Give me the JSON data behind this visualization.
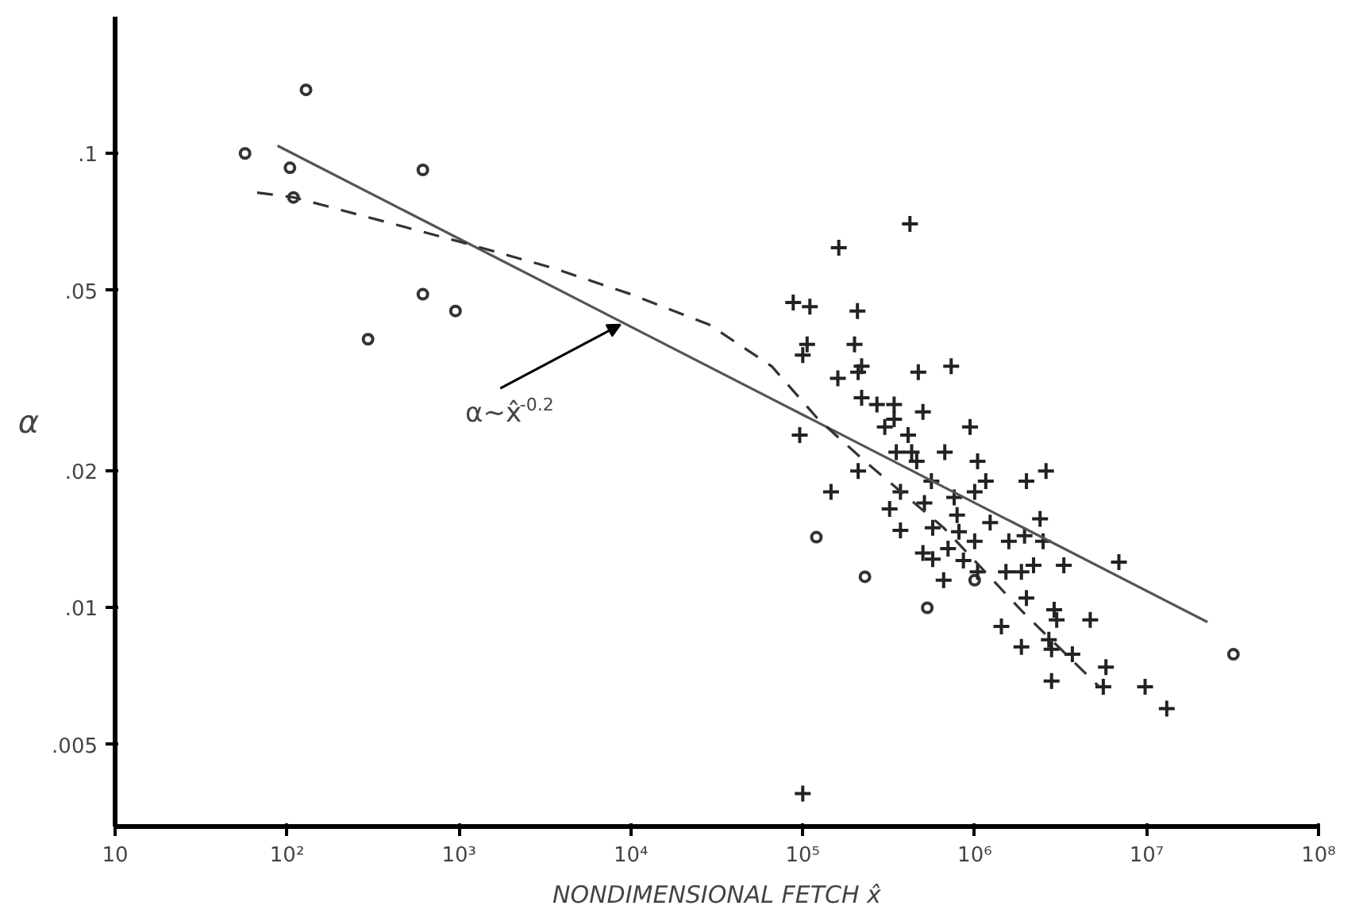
{
  "chart_data": {
    "type": "scatter",
    "xlabel": "NONDIMENSIONAL FETCH x̂",
    "ylabel": "α",
    "log": "xy",
    "grid": false,
    "xlim": [
      10,
      100000000
    ],
    "ylim": [
      0.0033,
      0.2
    ],
    "xticks": [
      {
        "value": 10,
        "label": "10"
      },
      {
        "value": 100,
        "label": "10²"
      },
      {
        "value": 1000,
        "label": "10³"
      },
      {
        "value": 10000,
        "label": "10⁴"
      },
      {
        "value": 100000,
        "label": "10⁵"
      },
      {
        "value": 1000000,
        "label": "10⁶"
      },
      {
        "value": 10000000,
        "label": "10⁷"
      },
      {
        "value": 100000000,
        "label": "10⁸"
      }
    ],
    "yticks": [
      {
        "value": 0.005,
        "label": ".005"
      },
      {
        "value": 0.01,
        "label": ".01"
      },
      {
        "value": 0.02,
        "label": ".02"
      },
      {
        "value": 0.05,
        "label": ".05"
      },
      {
        "value": 0.1,
        "label": ".1"
      }
    ],
    "annotations": [
      {
        "text": "α~x̂$^{-0.2}$",
        "x": 8700,
        "y": 0.042
      }
    ],
    "series": [
      {
        "marker": "circle",
        "color": "#333333",
        "x": [
          57,
          129,
          104,
          109,
          617,
          617,
          955,
          296,
          120000,
          230000,
          530000,
          1000000,
          32000000
        ],
        "values": [
          0.1,
          0.138,
          0.093,
          0.08,
          0.092,
          0.049,
          0.045,
          0.039,
          0.0143,
          0.0117,
          0.01,
          0.0115,
          0.0079
        ]
      },
      {
        "marker": "cross",
        "color": "#222222",
        "x": [
          420000,
          162000,
          88000,
          110000,
          208000,
          106000,
          100000,
          200000,
          220000,
          210000,
          730000,
          160000,
          470000,
          220000,
          270000,
          340000,
          340000,
          500000,
          300000,
          410000,
          96000,
          940000,
          350000,
          430000,
          460000,
          670000,
          1040000,
          210000,
          146000,
          1160000,
          2000000,
          2600000,
          370000,
          320000,
          560000,
          510000,
          760000,
          1000000,
          790000,
          370000,
          570000,
          810000,
          1000000,
          1230000,
          1580000,
          1950000,
          2400000,
          2500000,
          500000,
          570000,
          700000,
          860000,
          1040000,
          1520000,
          1870000,
          2200000,
          3300000,
          6900000,
          660000,
          2000000,
          2900000,
          3000000,
          4700000,
          1430000,
          1870000,
          2700000,
          2800000,
          3700000,
          5800000,
          5600000,
          2800000,
          9800000,
          13100000,
          100000
        ],
        "values": [
          0.07,
          0.062,
          0.047,
          0.046,
          0.045,
          0.038,
          0.036,
          0.038,
          0.034,
          0.033,
          0.034,
          0.032,
          0.033,
          0.029,
          0.028,
          0.028,
          0.026,
          0.027,
          0.025,
          0.024,
          0.024,
          0.025,
          0.022,
          0.022,
          0.021,
          0.022,
          0.021,
          0.02,
          0.018,
          0.019,
          0.019,
          0.02,
          0.018,
          0.0165,
          0.019,
          0.017,
          0.0175,
          0.018,
          0.016,
          0.0148,
          0.015,
          0.0147,
          0.014,
          0.0154,
          0.014,
          0.0144,
          0.0157,
          0.014,
          0.0132,
          0.0128,
          0.0135,
          0.0127,
          0.012,
          0.012,
          0.012,
          0.0124,
          0.0124,
          0.0126,
          0.0115,
          0.0105,
          0.0099,
          0.0094,
          0.0094,
          0.0091,
          0.0082,
          0.0085,
          0.0081,
          0.0079,
          0.0074,
          0.0067,
          0.0069,
          0.0067,
          0.006,
          0.0039
        ]
      },
      {
        "type": "line",
        "line_style": "solid",
        "color": "#555555",
        "x": [
          88,
          22600000
        ],
        "values": [
          0.104,
          0.0093
        ]
      },
      {
        "type": "line",
        "line_style": "dashed",
        "color": "#333333",
        "x": [
          67,
          110,
          1000,
          3500,
          10000,
          28500,
          66000,
          123000,
          230000,
          660000,
          1900000,
          5300000
        ],
        "values": [
          0.082,
          0.08,
          0.064,
          0.056,
          0.049,
          0.042,
          0.034,
          0.026,
          0.021,
          0.015,
          0.0098,
          0.0067
        ]
      }
    ]
  }
}
